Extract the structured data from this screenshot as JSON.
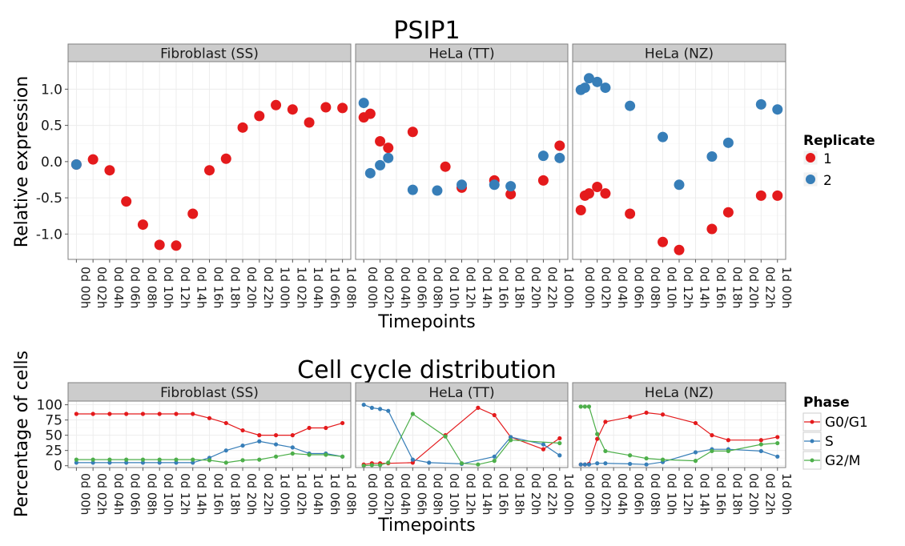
{
  "colors": {
    "series1": "#e41a1c",
    "series2": "#377eb8",
    "series3": "#4daf4a",
    "strip": "#cccccc",
    "panel_border": "#7f7f7f",
    "grid": "#ebebeb"
  },
  "chart_data": [
    {
      "type": "scatter",
      "title": "PSIP1",
      "xlabel": "Timepoints",
      "ylabel": "Relative expression",
      "ylim": [
        -1.35,
        1.38
      ],
      "yticks": [
        1.0,
        0.5,
        0.0,
        -0.5,
        -1.0
      ],
      "ytick_labels": [
        "1.0",
        "0.5",
        "0.0",
        "-0.5",
        "-1.0"
      ],
      "grid": true,
      "legend": {
        "title": "Replicate",
        "position": "right",
        "entries": [
          "1",
          "2"
        ]
      },
      "panels": [
        {
          "strip": "Fibroblast (SS)",
          "categories": [
            "0d 00h",
            "0d 02h",
            "0d 04h",
            "0d 06h",
            "0d 08h",
            "0d 10h",
            "0d 12h",
            "0d 14h",
            "0d 16h",
            "0d 18h",
            "0d 20h",
            "0d 22h",
            "1d 00h",
            "1d 02h",
            "1d 04h",
            "1d 06h",
            "1d 08h"
          ],
          "series": [
            {
              "name": "1",
              "values": [
                -0.04,
                0.03,
                -0.12,
                -0.55,
                -0.87,
                -1.15,
                -1.16,
                -0.72,
                -0.12,
                0.04,
                0.47,
                0.63,
                0.78,
                0.72,
                0.54,
                0.75,
                0.74
              ]
            },
            {
              "name": "2",
              "values": [
                -0.04,
                null,
                null,
                null,
                null,
                null,
                null,
                null,
                null,
                null,
                null,
                null,
                null,
                null,
                null,
                null,
                null
              ]
            }
          ]
        },
        {
          "strip": "HeLa (TT)",
          "categories": [
            "0d 00h",
            "0d 02h",
            "0d 04h",
            "0d 06h",
            "0d 08h",
            "0d 10h",
            "0d 12h",
            "0d 14h",
            "0d 16h",
            "0d 18h",
            "0d 20h",
            "0d 22h",
            "1d 00h"
          ],
          "points": [
            {
              "series": "1",
              "x": "0d 00h",
              "y": 0.61
            },
            {
              "series": "2",
              "x": "0d 00h",
              "y": 0.81
            },
            {
              "series": "1",
              "x": "0d 02h",
              "y": 0.66,
              "pos": 0.4
            },
            {
              "series": "2",
              "x": "0d 02h",
              "y": -0.16,
              "pos": 0.4
            },
            {
              "series": "1",
              "x": "0d 02h",
              "y": 0.28,
              "pos": 1
            },
            {
              "series": "2",
              "x": "0d 02h",
              "y": -0.05,
              "pos": 1
            },
            {
              "series": "1",
              "x": "0d 04h",
              "y": 0.19,
              "pos": 1.5
            },
            {
              "series": "2",
              "x": "0d 04h",
              "y": 0.05,
              "pos": 1.5
            },
            {
              "series": "1",
              "x": "0d 06h",
              "y": 0.41
            },
            {
              "series": "2",
              "x": "0d 06h",
              "y": -0.39
            },
            {
              "series": "1",
              "x": "0d 10h",
              "y": -0.07
            },
            {
              "series": "2",
              "x": "0d 08h",
              "y": -0.4,
              "pos": 4.5
            },
            {
              "series": "1",
              "x": "0d 12h",
              "y": -0.36
            },
            {
              "series": "2",
              "x": "0d 12h",
              "y": -0.32
            },
            {
              "series": "1",
              "x": "0d 16h",
              "y": -0.26
            },
            {
              "series": "2",
              "x": "0d 16h",
              "y": -0.32
            },
            {
              "series": "1",
              "x": "0d 18h",
              "y": -0.45
            },
            {
              "series": "2",
              "x": "0d 18h",
              "y": -0.34
            },
            {
              "series": "1",
              "x": "0d 22h",
              "y": -0.26
            },
            {
              "series": "2",
              "x": "0d 22h",
              "y": 0.08
            },
            {
              "series": "1",
              "x": "1d 00h",
              "y": 0.22
            },
            {
              "series": "2",
              "x": "1d 00h",
              "y": 0.05
            }
          ]
        },
        {
          "strip": "HeLa (NZ)",
          "categories": [
            "0d 00h",
            "0d 02h",
            "0d 04h",
            "0d 06h",
            "0d 08h",
            "0d 10h",
            "0d 12h",
            "0d 14h",
            "0d 16h",
            "0d 18h",
            "0d 20h",
            "0d 22h",
            "1d 00h"
          ],
          "points": [
            {
              "series": "1",
              "x": "0d 00h",
              "y": -0.67
            },
            {
              "series": "2",
              "x": "0d 00h",
              "y": 0.99
            },
            {
              "series": "1",
              "x": "0d 00h",
              "y": -0.47,
              "pos": 0.25
            },
            {
              "series": "2",
              "x": "0d 00h",
              "y": 1.02,
              "pos": 0.25
            },
            {
              "series": "1",
              "x": "0d 02h",
              "y": -0.44,
              "pos": 0.5
            },
            {
              "series": "2",
              "x": "0d 02h",
              "y": 1.15,
              "pos": 0.5
            },
            {
              "series": "1",
              "x": "0d 02h",
              "y": -0.35
            },
            {
              "series": "2",
              "x": "0d 02h",
              "y": 1.1
            },
            {
              "series": "1",
              "x": "0d 04h",
              "y": -0.44,
              "pos": 1.5
            },
            {
              "series": "2",
              "x": "0d 04h",
              "y": 1.02,
              "pos": 1.5
            },
            {
              "series": "1",
              "x": "0d 06h",
              "y": -0.72
            },
            {
              "series": "2",
              "x": "0d 06h",
              "y": 0.77
            },
            {
              "series": "1",
              "x": "0d 10h",
              "y": -1.11
            },
            {
              "series": "2",
              "x": "0d 10h",
              "y": 0.34
            },
            {
              "series": "1",
              "x": "0d 12h",
              "y": -1.22
            },
            {
              "series": "2",
              "x": "0d 12h",
              "y": -0.32
            },
            {
              "series": "1",
              "x": "0d 16h",
              "y": -0.93
            },
            {
              "series": "2",
              "x": "0d 16h",
              "y": 0.07
            },
            {
              "series": "1",
              "x": "0d 18h",
              "y": -0.7
            },
            {
              "series": "2",
              "x": "0d 18h",
              "y": 0.26
            },
            {
              "series": "1",
              "x": "0d 22h",
              "y": -0.47
            },
            {
              "series": "2",
              "x": "0d 22h",
              "y": 0.79
            },
            {
              "series": "1",
              "x": "1d 00h",
              "y": -0.47
            },
            {
              "series": "2",
              "x": "1d 00h",
              "y": 0.72
            }
          ]
        }
      ]
    },
    {
      "type": "line",
      "title": "Cell cycle distribution",
      "xlabel": "Timepoints",
      "ylabel": "Percentage of cells",
      "ylim": [
        -3,
        106
      ],
      "yticks": [
        100,
        75,
        50,
        25,
        0
      ],
      "ytick_labels": [
        "100",
        "75",
        "50",
        "25",
        "0"
      ],
      "grid": true,
      "legend": {
        "title": "Phase",
        "position": "right",
        "entries": [
          "G0/G1",
          "S",
          "G2/M"
        ]
      },
      "panels": [
        {
          "strip": "Fibroblast (SS)",
          "categories": [
            "0d 00h",
            "0d 02h",
            "0d 04h",
            "0d 06h",
            "0d 08h",
            "0d 10h",
            "0d 12h",
            "0d 14h",
            "0d 16h",
            "0d 18h",
            "0d 20h",
            "0d 22h",
            "1d 00h",
            "1d 02h",
            "1d 04h",
            "1d 06h",
            "1d 08h"
          ],
          "series": [
            {
              "name": "G0/G1",
              "x": [
                0,
                1,
                2,
                3,
                4,
                5,
                6,
                7,
                8,
                9,
                10,
                11,
                12,
                13,
                14,
                15,
                16
              ],
              "values": [
                85,
                85,
                85,
                85,
                85,
                85,
                85,
                85,
                78,
                70,
                58,
                50,
                50,
                50,
                62,
                62,
                70
              ]
            },
            {
              "name": "S",
              "x": [
                0,
                1,
                2,
                3,
                4,
                5,
                6,
                7,
                8,
                9,
                10,
                11,
                12,
                13,
                14,
                15,
                16
              ],
              "values": [
                5,
                5,
                5,
                5,
                5,
                5,
                5,
                5,
                13,
                25,
                33,
                40,
                35,
                30,
                20,
                20,
                15
              ]
            },
            {
              "name": "G2/M",
              "x": [
                0,
                1,
                2,
                3,
                4,
                5,
                6,
                7,
                8,
                9,
                10,
                11,
                12,
                13,
                14,
                15,
                16
              ],
              "values": [
                10,
                10,
                10,
                10,
                10,
                10,
                10,
                10,
                9,
                5,
                9,
                10,
                15,
                20,
                18,
                18,
                15
              ]
            }
          ]
        },
        {
          "strip": "HeLa (TT)",
          "categories": [
            "0d 00h",
            "0d 02h",
            "0d 04h",
            "0d 06h",
            "0d 08h",
            "0d 10h",
            "0d 12h",
            "0d 14h",
            "0d 16h",
            "0d 18h",
            "0d 20h",
            "0d 22h",
            "1d 00h"
          ],
          "series": [
            {
              "name": "G0/G1",
              "x": [
                0,
                0.5,
                1,
                1.5,
                3,
                5,
                7,
                8,
                9,
                11,
                12
              ],
              "values": [
                2,
                4,
                4,
                4,
                5,
                50,
                95,
                83,
                47,
                27,
                45
              ]
            },
            {
              "name": "S",
              "x": [
                0,
                0.5,
                1,
                1.5,
                3,
                4,
                6,
                8,
                9,
                11,
                12
              ],
              "values": [
                100,
                95,
                93,
                90,
                10,
                5,
                3,
                15,
                47,
                35,
                17
              ]
            },
            {
              "name": "G2/M",
              "x": [
                0,
                0.5,
                1,
                1.5,
                3,
                5,
                6,
                7,
                8,
                9,
                12
              ],
              "values": [
                0,
                1,
                1,
                5,
                85,
                48,
                4,
                2,
                8,
                42,
                37
              ]
            }
          ]
        },
        {
          "strip": "HeLa (NZ)",
          "categories": [
            "0d 00h",
            "0d 02h",
            "0d 04h",
            "0d 06h",
            "0d 08h",
            "0d 10h",
            "0d 12h",
            "0d 14h",
            "0d 16h",
            "0d 18h",
            "0d 20h",
            "0d 22h",
            "1d 00h"
          ],
          "series": [
            {
              "name": "G0/G1",
              "x": [
                0,
                0.25,
                0.5,
                1,
                1.5,
                3,
                4,
                5,
                7,
                8,
                9,
                11,
                12
              ],
              "values": [
                2,
                2,
                3,
                44,
                72,
                80,
                87,
                84,
                70,
                50,
                42,
                42,
                47
              ]
            },
            {
              "name": "S",
              "x": [
                0,
                0.25,
                0.5,
                1,
                1.5,
                3,
                4,
                5,
                7,
                8,
                9,
                11,
                12
              ],
              "values": [
                2,
                2,
                2,
                4,
                4,
                3,
                2,
                6,
                22,
                27,
                27,
                24,
                15
              ]
            },
            {
              "name": "G2/M",
              "x": [
                0,
                0.25,
                0.5,
                1,
                1.5,
                3,
                4,
                5,
                7,
                8,
                9,
                11,
                12
              ],
              "values": [
                97,
                97,
                97,
                52,
                24,
                17,
                12,
                10,
                8,
                24,
                24,
                35,
                37
              ]
            }
          ]
        }
      ]
    }
  ]
}
